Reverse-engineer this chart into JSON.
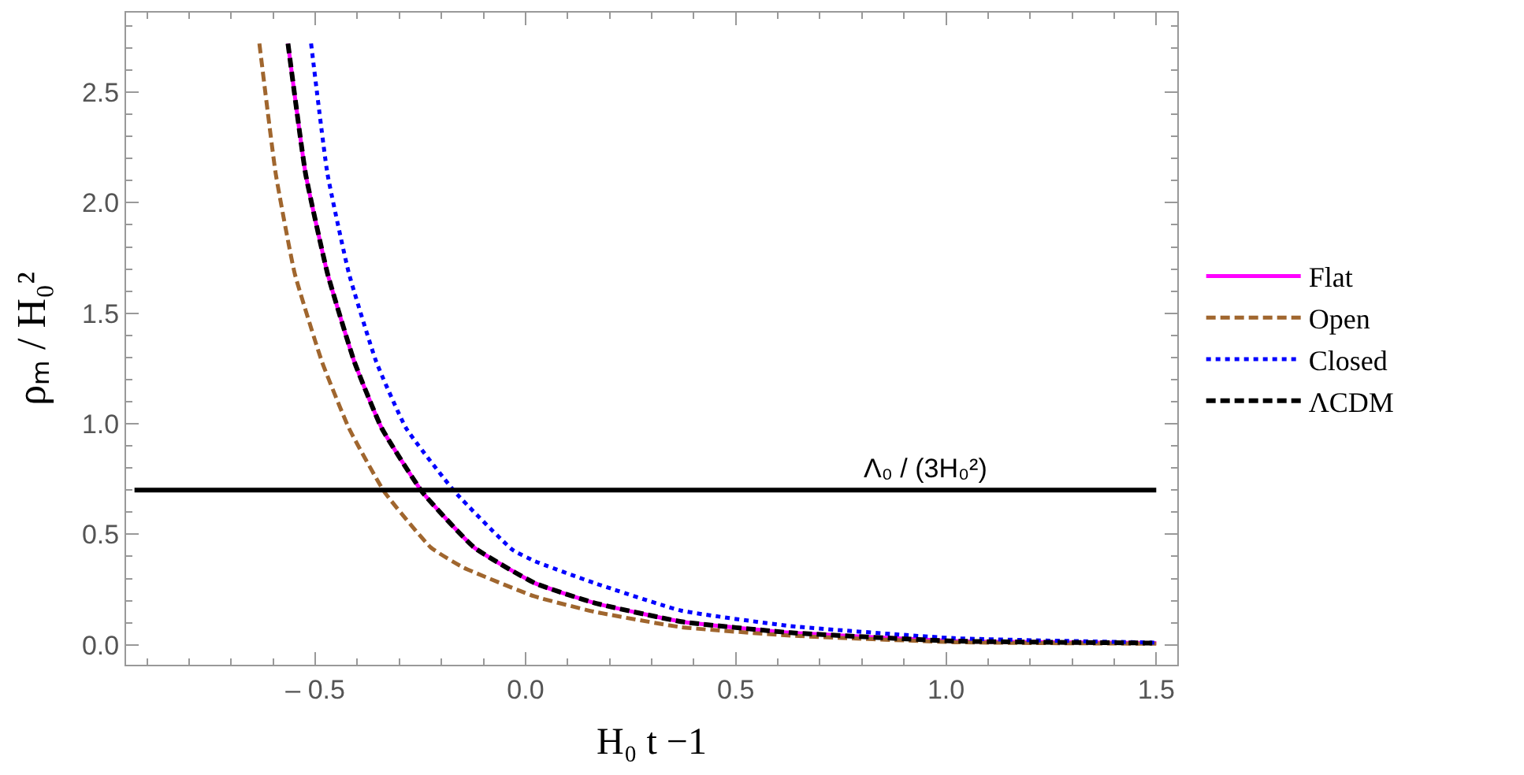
{
  "chart_data": {
    "type": "line",
    "xlabel": "H₀ t −1",
    "ylabel": "ρₘ / H₀²",
    "xlim": [
      -0.95,
      1.55
    ],
    "ylim": [
      -0.09,
      2.86
    ],
    "xticks": [
      {
        "value": -0.5,
        "label": "– 0.5"
      },
      {
        "value": 0.0,
        "label": "0.0"
      },
      {
        "value": 0.5,
        "label": "0.5"
      },
      {
        "value": 1.0,
        "label": "1.0"
      },
      {
        "value": 1.5,
        "label": "1.5"
      }
    ],
    "yticks": [
      {
        "value": 0.0,
        "label": "0.0"
      },
      {
        "value": 0.5,
        "label": "0.5"
      },
      {
        "value": 1.0,
        "label": "1.0"
      },
      {
        "value": 1.5,
        "label": "1.5"
      },
      {
        "value": 2.0,
        "label": "2.0"
      },
      {
        "value": 2.5,
        "label": "2.5"
      }
    ],
    "legend": "right",
    "marker": "none",
    "series": [
      {
        "name": "Flat",
        "color": "#ff00ff",
        "line_style": "solid",
        "x": [
          -0.565,
          -0.523,
          -0.471,
          -0.407,
          -0.342,
          -0.245,
          -0.122,
          0.021,
          0.163,
          0.37,
          0.63,
          1.02,
          1.5
        ],
        "values": [
          2.72,
          2.13,
          1.68,
          1.28,
          0.98,
          0.69,
          0.44,
          0.28,
          0.19,
          0.105,
          0.055,
          0.017,
          0.008
        ]
      },
      {
        "name": "Open",
        "color": "#a0662e",
        "line_style": "dashed",
        "x": [
          -0.633,
          -0.594,
          -0.549,
          -0.484,
          -0.42,
          -0.335,
          -0.225,
          -0.148,
          0.02,
          0.163,
          0.37,
          0.63,
          1.02,
          1.5
        ],
        "values": [
          2.72,
          2.13,
          1.68,
          1.28,
          0.98,
          0.69,
          0.44,
          0.35,
          0.22,
          0.15,
          0.08,
          0.042,
          0.012,
          0.005
        ]
      },
      {
        "name": "Closed",
        "color": "#0000ff",
        "line_style": "dotted",
        "x": [
          -0.51,
          -0.471,
          -0.42,
          -0.355,
          -0.284,
          -0.167,
          -0.031,
          0.02,
          0.163,
          0.37,
          0.63,
          1.02,
          1.5
        ],
        "values": [
          2.72,
          2.13,
          1.68,
          1.28,
          0.98,
          0.69,
          0.43,
          0.38,
          0.28,
          0.155,
          0.085,
          0.03,
          0.01
        ]
      },
      {
        "name": "ΛCDM",
        "color": "#000000",
        "line_style": "dashed",
        "x": [
          -0.565,
          -0.523,
          -0.471,
          -0.407,
          -0.342,
          -0.245,
          -0.122,
          0.021,
          0.163,
          0.37,
          0.63,
          1.02,
          1.5
        ],
        "values": [
          2.72,
          2.13,
          1.68,
          1.28,
          0.98,
          0.69,
          0.44,
          0.28,
          0.19,
          0.105,
          0.055,
          0.017,
          0.008
        ]
      }
    ],
    "ref_lines": [
      {
        "axis": "y",
        "value": 0.7,
        "label": "Λ₀ / (3H₀²)",
        "color": "#000000"
      }
    ]
  }
}
